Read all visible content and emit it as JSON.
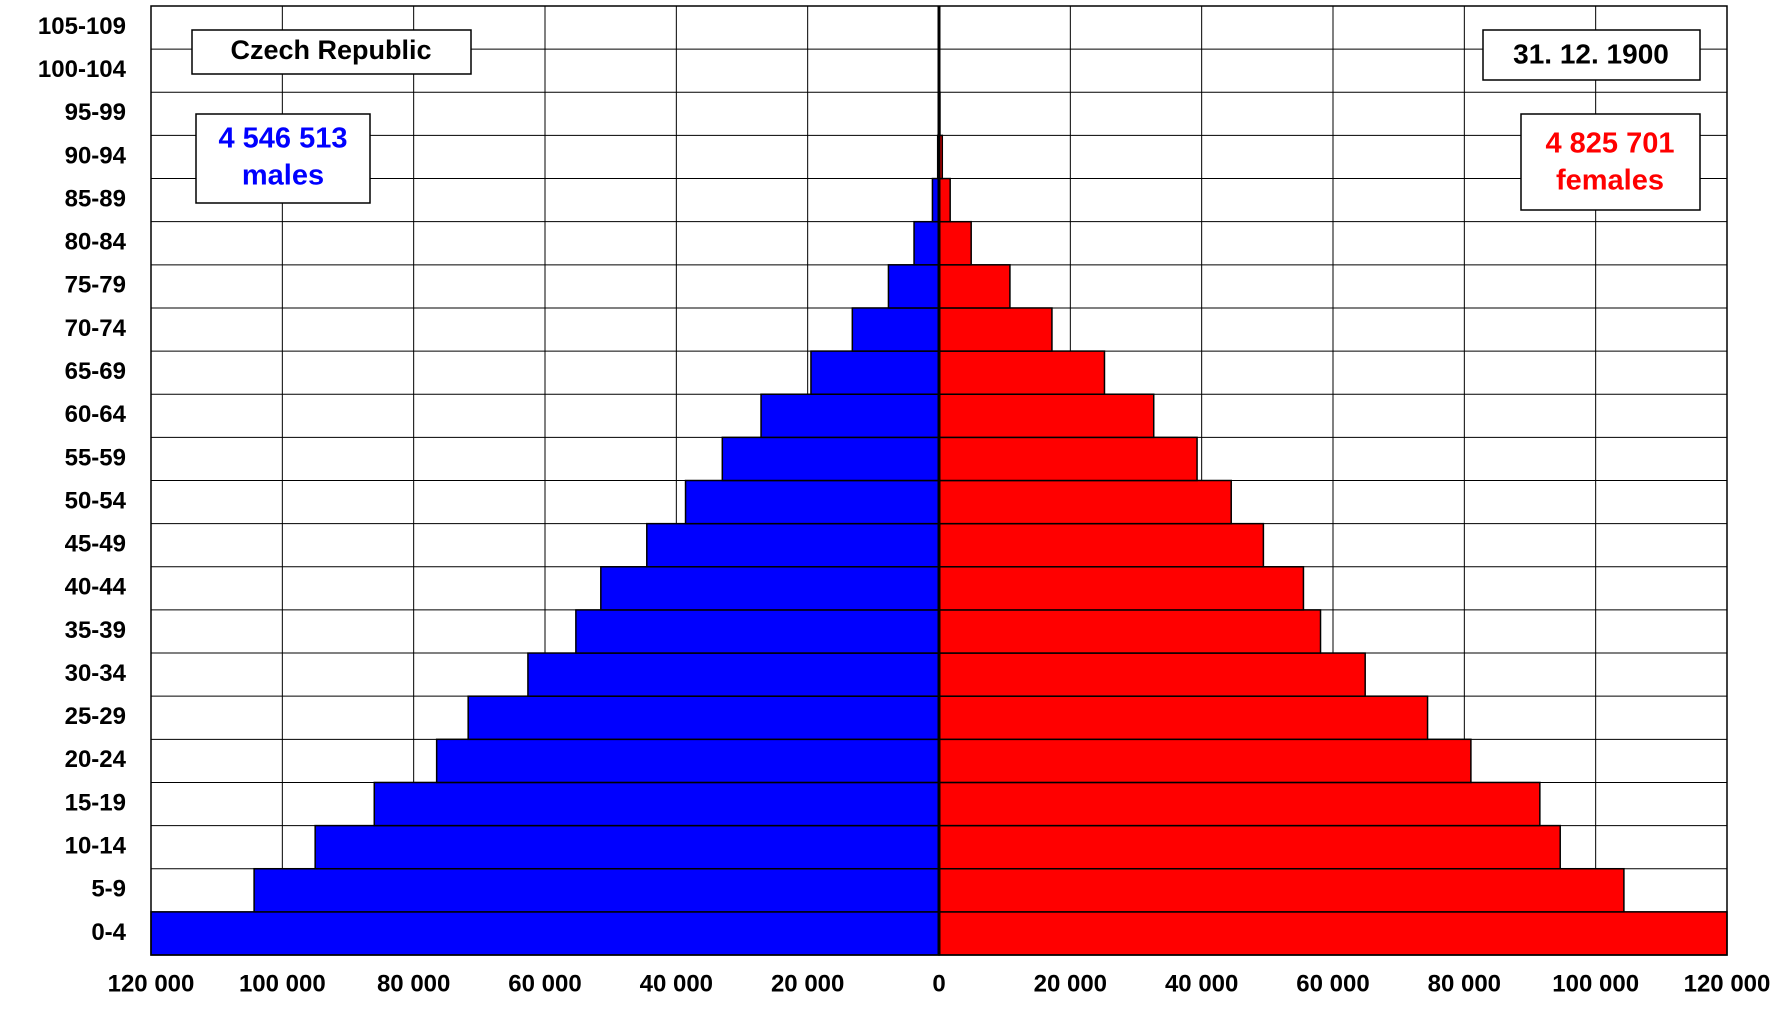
{
  "chart_data": {
    "type": "pyramid",
    "title": "Czech Republic",
    "date": "31. 12. 1900",
    "males_total": "4 546 513",
    "males_label": "males",
    "females_total": "4 825 701",
    "females_label": "females",
    "categories": [
      "0-4",
      "5-9",
      "10-14",
      "15-19",
      "20-24",
      "25-29",
      "30-34",
      "35-39",
      "40-44",
      "45-49",
      "50-54",
      "55-59",
      "60-64",
      "65-69",
      "70-74",
      "75-79",
      "80-84",
      "85-89",
      "90-94",
      "95-99",
      "100-104",
      "105-109"
    ],
    "series": [
      {
        "name": "males",
        "color": "#0000ff",
        "values": [
          -120000,
          -104300,
          -95000,
          -86000,
          -76500,
          -71700,
          -62600,
          -55300,
          -51500,
          -44500,
          -38600,
          -33000,
          -27100,
          -19500,
          -13200,
          -7700,
          -3800,
          -1000,
          -200,
          -50,
          0,
          0
        ]
      },
      {
        "name": "females",
        "color": "#ff0000",
        "values": [
          120000,
          104300,
          94600,
          91500,
          81000,
          74400,
          64900,
          58100,
          55500,
          49400,
          44500,
          39300,
          32700,
          25200,
          17200,
          10800,
          4900,
          1700,
          500,
          150,
          0,
          0
        ]
      }
    ],
    "xlim": [
      -120000,
      120000
    ],
    "xticks": [
      {
        "value": -120000,
        "label": "120 000"
      },
      {
        "value": -100000,
        "label": "100 000"
      },
      {
        "value": -80000,
        "label": "80 000"
      },
      {
        "value": -60000,
        "label": "60 000"
      },
      {
        "value": -40000,
        "label": "40 000"
      },
      {
        "value": -20000,
        "label": "20 000"
      },
      0,
      {
        "value": 20000,
        "label": "20 000"
      },
      {
        "value": 40000,
        "label": "40 000"
      },
      {
        "value": 60000,
        "label": "60 000"
      },
      {
        "value": 80000,
        "label": "80 000"
      },
      {
        "value": 100000,
        "label": "100 000"
      },
      {
        "value": 120000,
        "label": "120 000"
      }
    ],
    "grid": true
  }
}
